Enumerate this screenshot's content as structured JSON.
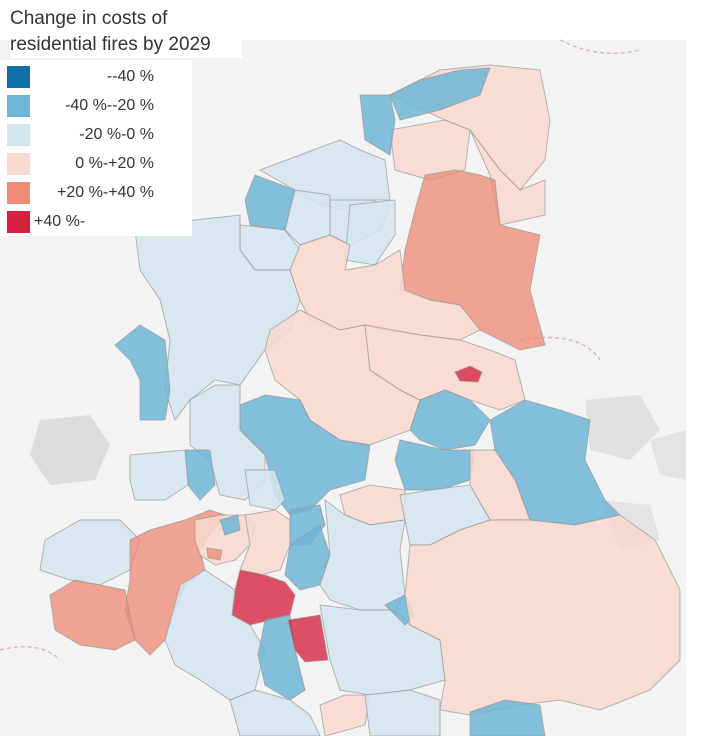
{
  "title": "Change in costs of residential fires by 2029",
  "legend": [
    {
      "label": "--40 %",
      "color": "#1170aa"
    },
    {
      "label": "-40 %--20 %",
      "color": "#6db5d6"
    },
    {
      "label": "-20 %-0 %",
      "color": "#d3e5ef"
    },
    {
      "label": "0 %-+20 %",
      "color": "#f9d8cf"
    },
    {
      "label": "+20 %-+40 %",
      "color": "#ee8a77"
    },
    {
      "label": "+40 %-",
      "color": "#d6203f"
    }
  ],
  "basemap_colors": {
    "background": "#f3f3f3",
    "urban": "#dcdcdc",
    "border": "#f1b3b3"
  }
}
